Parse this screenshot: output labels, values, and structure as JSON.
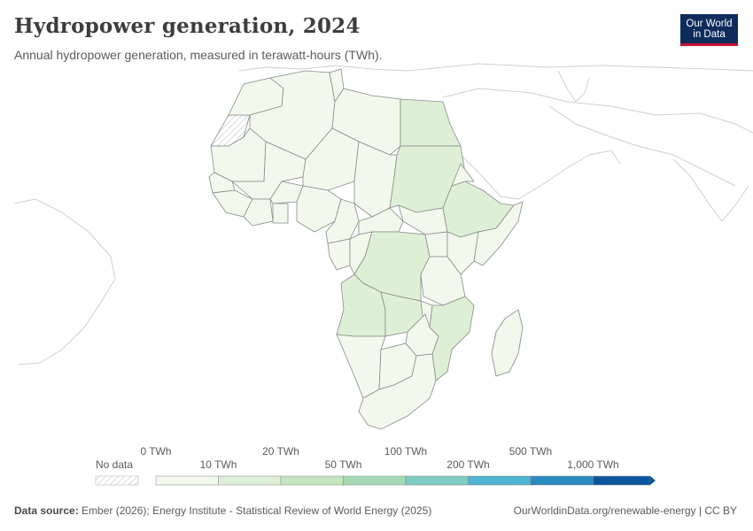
{
  "header": {
    "title": "Hydropower generation, 2024",
    "subtitle": "Annual hydropower generation, measured in terawatt-hours (TWh)."
  },
  "logo": {
    "line1": "Our World",
    "line2": "in Data"
  },
  "legend": {
    "no_data_label": "No data",
    "top_labels": [
      "0 TWh",
      "20 TWh",
      "100 TWh",
      "500 TWh"
    ],
    "bottom_labels": [
      "10 TWh",
      "50 TWh",
      "200 TWh",
      "1,000 TWh"
    ],
    "colors": [
      "#f2f9ec",
      "#ddf0d5",
      "#c3e6bf",
      "#a4d9b4",
      "#7ecbc4",
      "#4fb3d2",
      "#2a8bc0",
      "#0b559d"
    ]
  },
  "footer": {
    "source_label": "Data source:",
    "source_text": " Ember (2026); Energy Institute - Statistical Review of World Energy (2025)",
    "right_text": "OurWorldinData.org/renewable-energy | CC BY"
  },
  "map": {
    "region": "Africa",
    "country_colors": {
      "low": "#f2f9ec",
      "mid": "#ddf0d5",
      "high": "#c3e6bf"
    }
  }
}
